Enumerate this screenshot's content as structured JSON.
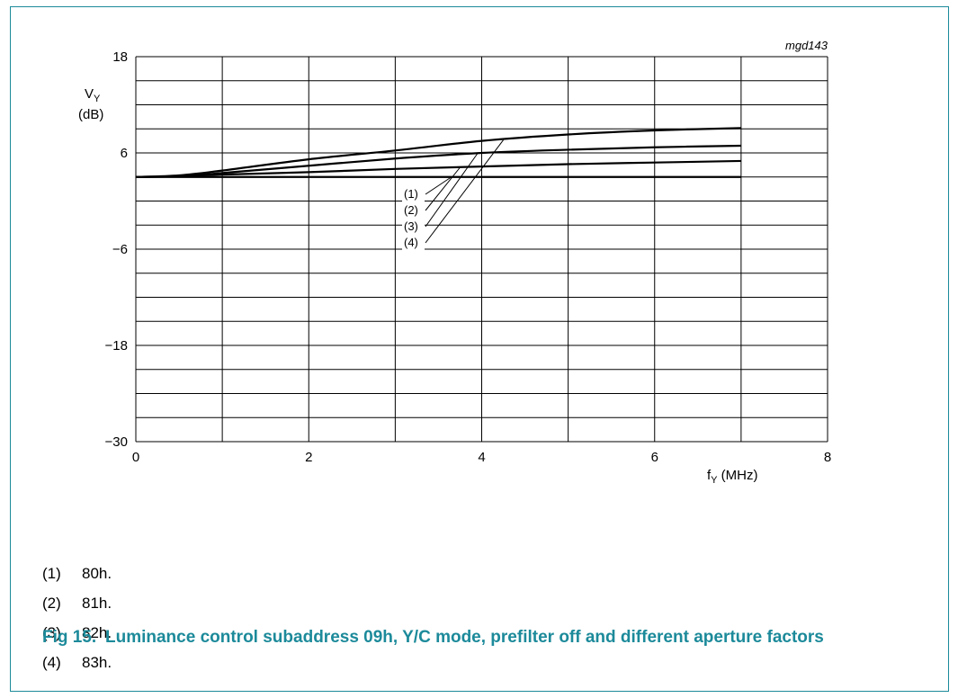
{
  "chart_data": {
    "type": "line",
    "title": "",
    "annotation": "mgd143",
    "ylabel_main": "V",
    "ylabel_sub": "Y",
    "ylabel_unit": "(dB)",
    "xlabel_main": "f",
    "xlabel_sub": "Y",
    "xlabel_unit": "(MHz)",
    "xlim": [
      0,
      8
    ],
    "ylim": [
      -30,
      18
    ],
    "x_ticks": [
      0,
      2,
      4,
      6,
      8
    ],
    "y_ticks": [
      18,
      6,
      -6,
      -18,
      -30
    ],
    "y_tick_labels": [
      "18",
      "6",
      "−6",
      "−18",
      "−30"
    ],
    "grid": true,
    "series": [
      {
        "name": "(1)",
        "x": [
          0,
          0.5,
          1,
          2,
          3,
          4,
          5,
          6,
          7
        ],
        "y": [
          3,
          3,
          3,
          3,
          3,
          3,
          3,
          3,
          3
        ]
      },
      {
        "name": "(2)",
        "x": [
          0,
          0.5,
          1,
          2,
          3,
          4,
          5,
          6,
          7
        ],
        "y": [
          3,
          3.1,
          3.3,
          3.6,
          4.0,
          4.3,
          4.6,
          4.8,
          5.0
        ]
      },
      {
        "name": "(3)",
        "x": [
          0,
          0.5,
          1,
          2,
          3,
          4,
          5,
          6,
          7
        ],
        "y": [
          3,
          3.1,
          3.5,
          4.4,
          5.3,
          6.0,
          6.4,
          6.7,
          6.9
        ]
      },
      {
        "name": "(4)",
        "x": [
          0,
          0.5,
          1,
          2,
          3,
          4,
          5,
          6,
          7
        ],
        "y": [
          3,
          3.2,
          3.8,
          5.2,
          6.3,
          7.5,
          8.3,
          8.8,
          9.1
        ]
      }
    ],
    "callouts": [
      {
        "label": "(1)",
        "x": 3.65,
        "y": 3.0
      },
      {
        "label": "(2)",
        "x": 3.75,
        "y": 4.2
      },
      {
        "label": "(3)",
        "x": 3.95,
        "y": 5.9
      },
      {
        "label": "(4)",
        "x": 4.25,
        "y": 7.6
      }
    ]
  },
  "legend": [
    {
      "key": "(1)",
      "text": "80h."
    },
    {
      "key": "(2)",
      "text": "81h."
    },
    {
      "key": "(3)",
      "text": "82h."
    },
    {
      "key": "(4)",
      "text": "83h."
    }
  ],
  "caption": {
    "fig": "Fig 15.",
    "text": "Luminance control subaddress 09h, Y/C mode, prefilter off and different aperture factors"
  }
}
